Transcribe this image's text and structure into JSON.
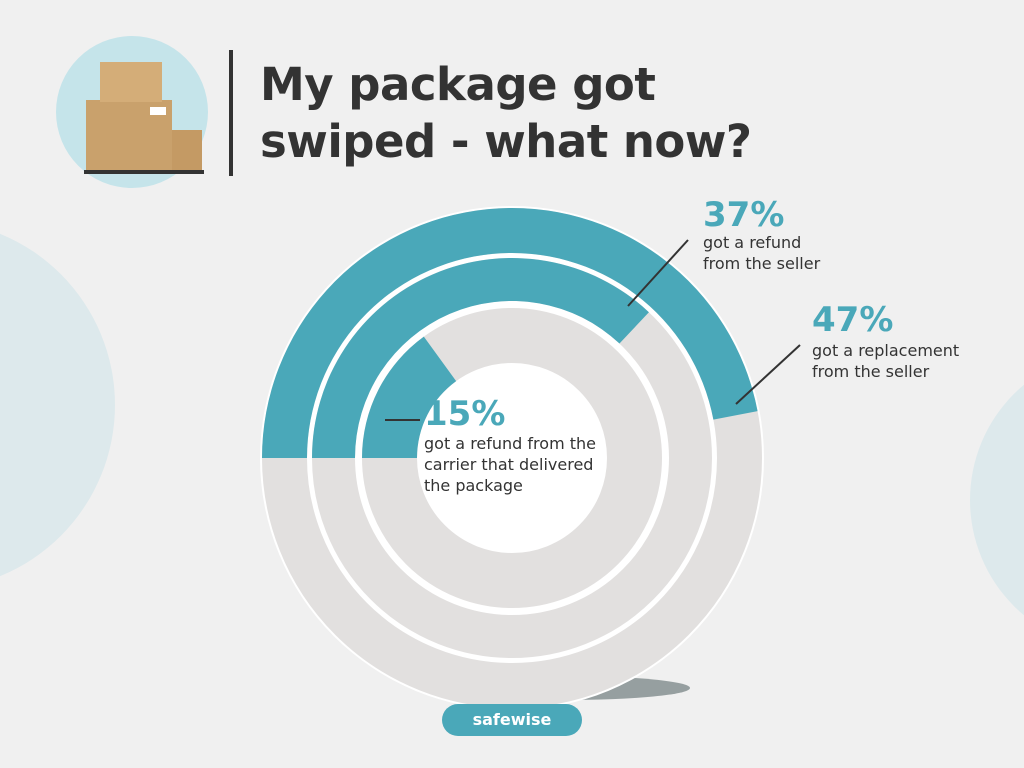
{
  "title": "My package got swiped - what now?",
  "logo": "safewise",
  "chart_data": {
    "type": "radial-bar",
    "categories": [
      "got a replacement from the seller",
      "got a refund from the seller",
      "got a refund from the carrier that delivered the package"
    ],
    "values": [
      47,
      37,
      15
    ],
    "value_labels": [
      "47%",
      "37%",
      "15%"
    ],
    "ylim": [
      0,
      100
    ],
    "color": "#4aa8b9",
    "track_color": "#e2e0df"
  }
}
